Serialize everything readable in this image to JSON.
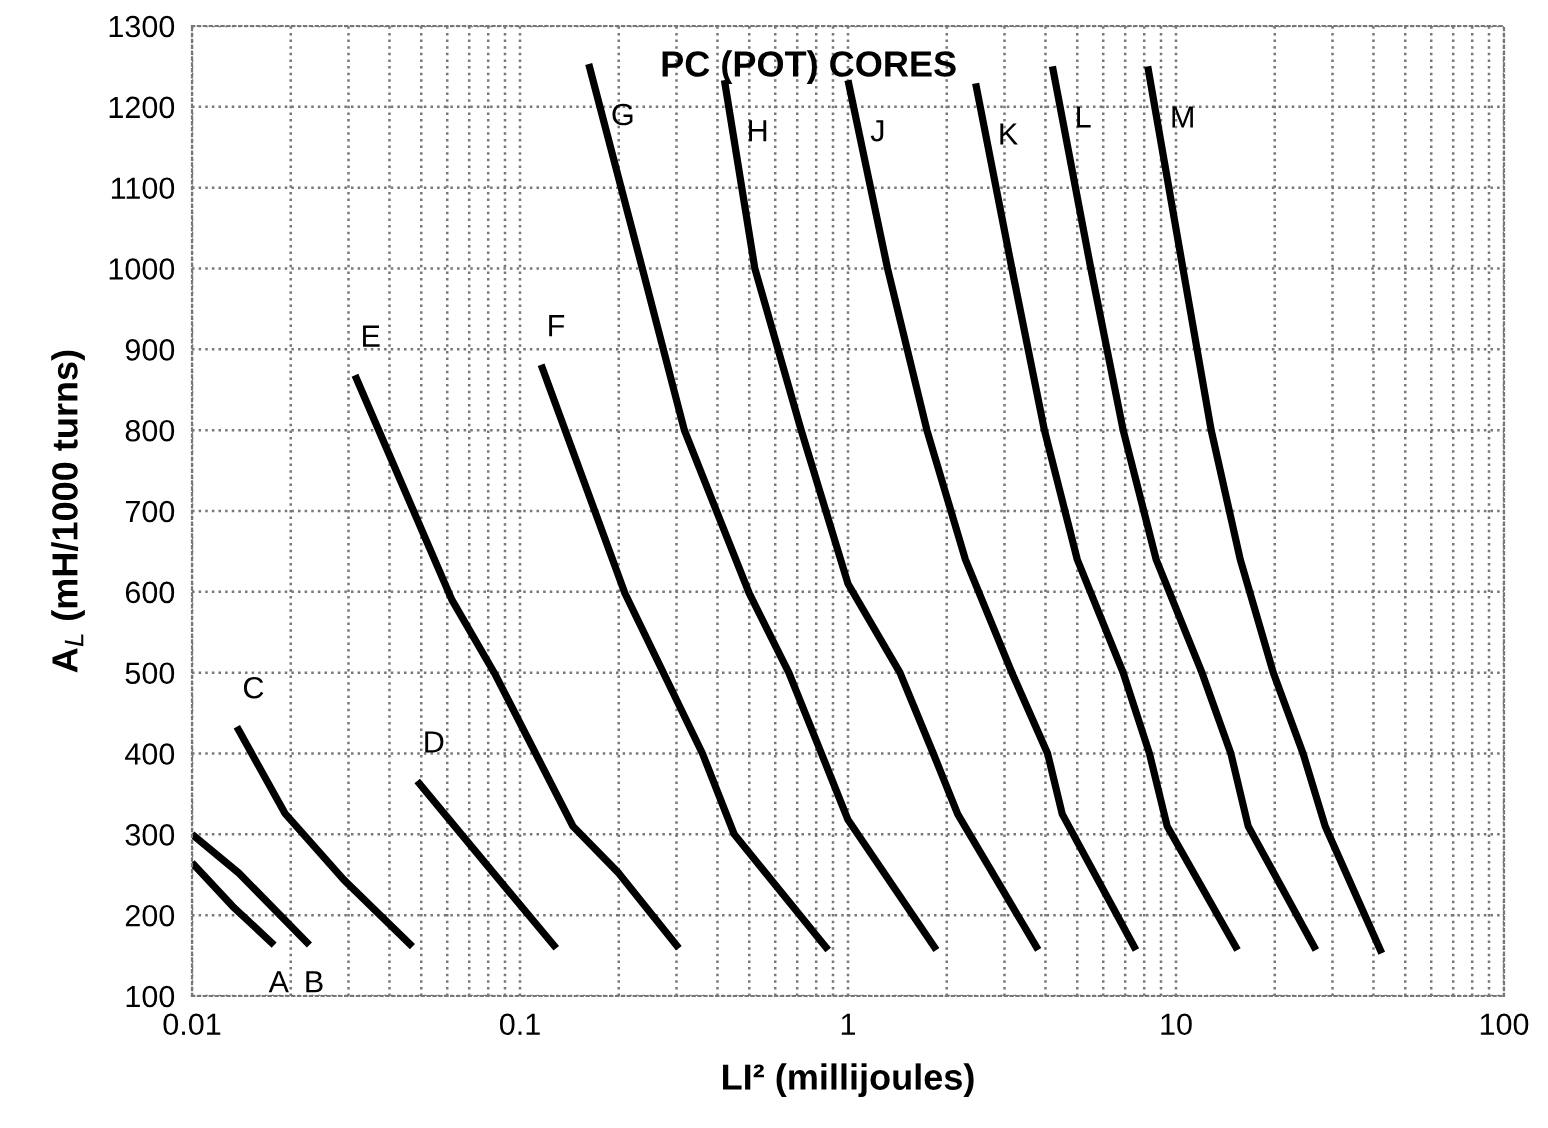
{
  "chart_data": {
    "type": "line",
    "title": "PC (POT) CORES",
    "xlabel": "LI² (millijoules)",
    "ylabel": "A$_{L}$ (mH/1000 turns)",
    "log": "x",
    "xlim": [
      0.01,
      100
    ],
    "xticks": [
      0.01,
      0.1,
      1,
      10,
      100
    ],
    "ylim": [
      100,
      1300
    ],
    "yticks": [
      100,
      200,
      300,
      400,
      500,
      600,
      700,
      800,
      900,
      1000,
      1100,
      1200,
      1300
    ],
    "grid": true,
    "legend": false,
    "marker": "none",
    "line_style": "solid",
    "series": [
      {
        "name": "A",
        "color": "#000000",
        "x": [
          0.01,
          0.0133,
          0.0178
        ],
        "values": [
          265,
          211,
          163
        ]
      },
      {
        "name": "B",
        "color": "#000000",
        "x": [
          0.01,
          0.0139,
          0.0228
        ],
        "values": [
          300,
          252,
          163
        ]
      },
      {
        "name": "C",
        "color": "#000000",
        "x": [
          0.0137,
          0.0192,
          0.029,
          0.047
        ],
        "values": [
          433,
          326,
          244,
          161
        ]
      },
      {
        "name": "D",
        "color": "#000000",
        "x": [
          0.0486,
          0.08,
          0.129
        ],
        "values": [
          366,
          260,
          159
        ]
      },
      {
        "name": "E",
        "color": "#000000",
        "x": [
          0.0314,
          0.062,
          0.0837,
          0.145,
          0.2,
          0.305
        ],
        "values": [
          868,
          590,
          499,
          310,
          252,
          159
        ]
      },
      {
        "name": "F",
        "color": "#000000",
        "x": [
          0.116,
          0.209,
          0.36,
          0.45,
          0.87
        ],
        "values": [
          881,
          598,
          400,
          300,
          157
        ]
      },
      {
        "name": "G",
        "color": "#000000",
        "x": [
          0.162,
          0.235,
          0.317,
          0.5,
          0.66,
          0.83,
          1.0,
          1.86
        ],
        "values": [
          1253,
          1003,
          800,
          598,
          500,
          400,
          318,
          157
        ]
      },
      {
        "name": "H",
        "color": "#000000",
        "x": [
          0.42,
          0.52,
          0.72,
          1.0,
          1.44,
          1.82,
          2.16,
          3.8
        ],
        "values": [
          1233,
          1000,
          800,
          610,
          500,
          400,
          325,
          157
        ]
      },
      {
        "name": "J",
        "color": "#000000",
        "x": [
          1.0,
          1.32,
          1.74,
          2.28,
          3.16,
          4.06,
          4.5,
          7.55
        ],
        "values": [
          1233,
          1000,
          800,
          640,
          500,
          400,
          325,
          157
        ]
      },
      {
        "name": "K",
        "color": "#000000",
        "x": [
          2.45,
          3.16,
          3.97,
          5.0,
          6.9,
          8.3,
          9.4,
          15.4
        ],
        "values": [
          1229,
          1000,
          800,
          640,
          500,
          400,
          310,
          157
        ]
      },
      {
        "name": "L",
        "color": "#000000",
        "x": [
          4.2,
          5.5,
          6.9,
          8.7,
          12.0,
          14.7,
          16.6,
          26.7
        ],
        "values": [
          1250,
          1000,
          800,
          640,
          500,
          400,
          310,
          157
        ]
      },
      {
        "name": "M",
        "color": "#000000",
        "x": [
          8.2,
          10.5,
          12.8,
          15.7,
          19.8,
          24.4,
          28.5,
          42.4
        ],
        "values": [
          1250,
          1000,
          800,
          640,
          500,
          400,
          310,
          153
        ]
      }
    ]
  }
}
